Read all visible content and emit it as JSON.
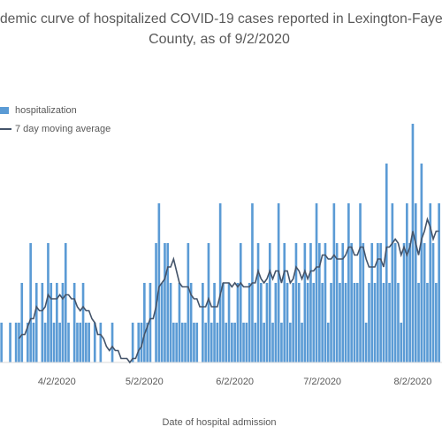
{
  "chart_data": {
    "type": "bar",
    "title_lines": [
      "demic curve of hospitalized COVID-19 cases reported in Lexington-Fayet",
      "County, as of 9/2/2020"
    ],
    "x_axis_label": "Date of hospital admission",
    "legend": "top-left",
    "categories": [
      null,
      null,
      null,
      null,
      null,
      null,
      null,
      null,
      null,
      null,
      null,
      null,
      null,
      null,
      null,
      null,
      null,
      null,
      null,
      "4/2/2020",
      null,
      null,
      null,
      null,
      null,
      null,
      null,
      null,
      null,
      null,
      null,
      null,
      null,
      null,
      null,
      null,
      null,
      null,
      null,
      null,
      null,
      null,
      null,
      null,
      null,
      null,
      null,
      null,
      null,
      "5/2/2020",
      null,
      null,
      null,
      null,
      null,
      null,
      null,
      null,
      null,
      null,
      null,
      null,
      null,
      null,
      null,
      null,
      null,
      null,
      null,
      null,
      null,
      null,
      null,
      null,
      null,
      null,
      null,
      null,
      null,
      null,
      "6/2/2020",
      null,
      null,
      null,
      null,
      null,
      null,
      null,
      null,
      null,
      null,
      null,
      null,
      null,
      null,
      null,
      null,
      null,
      null,
      null,
      null,
      null,
      null,
      null,
      null,
      null,
      null,
      null,
      null,
      null,
      "7/2/2020",
      null,
      null,
      null,
      null,
      null,
      null,
      null,
      null,
      null,
      null,
      null,
      null,
      null,
      null,
      null,
      null,
      null,
      null,
      null,
      null,
      null,
      null,
      null,
      null,
      null,
      null,
      null,
      null,
      null,
      null,
      "8/2/2020",
      null,
      null,
      null,
      null,
      null,
      null,
      null,
      null,
      null
    ],
    "series": [
      {
        "name": "hospitalization",
        "type": "bar",
        "color": "#5b9bd5",
        "values": [
          1,
          0,
          0,
          1,
          0,
          1,
          1,
          2,
          0,
          1,
          3,
          1,
          2,
          0,
          2,
          1,
          3,
          2,
          1,
          2,
          1,
          2,
          3,
          1,
          0,
          2,
          1,
          1,
          2,
          1,
          1,
          0,
          1,
          0,
          1,
          0,
          0,
          0,
          1,
          0,
          0,
          0,
          0,
          0,
          0,
          1,
          0,
          1,
          1,
          2,
          1,
          2,
          0,
          3,
          4,
          2,
          3,
          3,
          2,
          1,
          1,
          2,
          1,
          1,
          3,
          2,
          1,
          1,
          0,
          2,
          1,
          3,
          1,
          2,
          1,
          4,
          2,
          1,
          2,
          1,
          1,
          2,
          3,
          1,
          1,
          2,
          4,
          1,
          3,
          2,
          1,
          2,
          3,
          1,
          2,
          4,
          1,
          3,
          2,
          1,
          2,
          3,
          2,
          1,
          3,
          2,
          3,
          2,
          4,
          3,
          2,
          3,
          1,
          2,
          4,
          3,
          2,
          3,
          2,
          4,
          3,
          2,
          2,
          4,
          3,
          1,
          2,
          3,
          2,
          3,
          3,
          2,
          5,
          2,
          4,
          3,
          2,
          1,
          3,
          4,
          3,
          6,
          4,
          2,
          5,
          3,
          2,
          4,
          3,
          2,
          4
        ]
      },
      {
        "name": "7 day moving average",
        "type": "line",
        "color": "#44546a",
        "values": [
          null,
          null,
          null,
          null,
          null,
          null,
          0.6,
          0.7,
          0.7,
          0.9,
          1.1,
          1.1,
          1.4,
          1.3,
          1.3,
          1.4,
          1.7,
          1.6,
          1.6,
          1.6,
          1.7,
          1.6,
          1.7,
          1.7,
          1.6,
          1.6,
          1.4,
          1.3,
          1.4,
          1.3,
          1.3,
          1.1,
          1.0,
          0.7,
          0.7,
          0.6,
          0.4,
          0.3,
          0.4,
          0.3,
          0.3,
          0.1,
          0.1,
          0.1,
          0.0,
          0.1,
          0.1,
          0.3,
          0.4,
          0.7,
          0.9,
          1.1,
          1.1,
          1.4,
          1.9,
          2.0,
          2.1,
          2.4,
          2.4,
          2.6,
          2.3,
          2.0,
          1.9,
          1.9,
          1.9,
          1.7,
          1.6,
          1.6,
          1.4,
          1.4,
          1.4,
          1.6,
          1.4,
          1.4,
          1.4,
          1.7,
          2.0,
          2.0,
          2.0,
          1.9,
          2.0,
          1.9,
          2.0,
          1.9,
          1.9,
          1.9,
          2.0,
          2.0,
          2.3,
          2.1,
          2.0,
          2.1,
          2.3,
          2.1,
          2.3,
          2.3,
          2.0,
          2.3,
          2.3,
          2.0,
          2.1,
          2.4,
          2.3,
          2.1,
          2.3,
          2.1,
          2.3,
          2.3,
          2.4,
          2.4,
          2.7,
          2.7,
          2.6,
          2.6,
          2.7,
          2.6,
          2.6,
          2.6,
          2.7,
          2.9,
          2.9,
          2.7,
          2.7,
          2.9,
          2.9,
          2.6,
          2.4,
          2.4,
          2.4,
          2.6,
          2.6,
          2.4,
          2.9,
          2.9,
          3.0,
          3.1,
          3.0,
          2.7,
          2.9,
          2.7,
          2.9,
          3.3,
          3.0,
          2.7,
          3.1,
          3.3,
          3.6,
          3.4,
          3.1,
          3.3,
          3.3
        ]
      }
    ]
  }
}
